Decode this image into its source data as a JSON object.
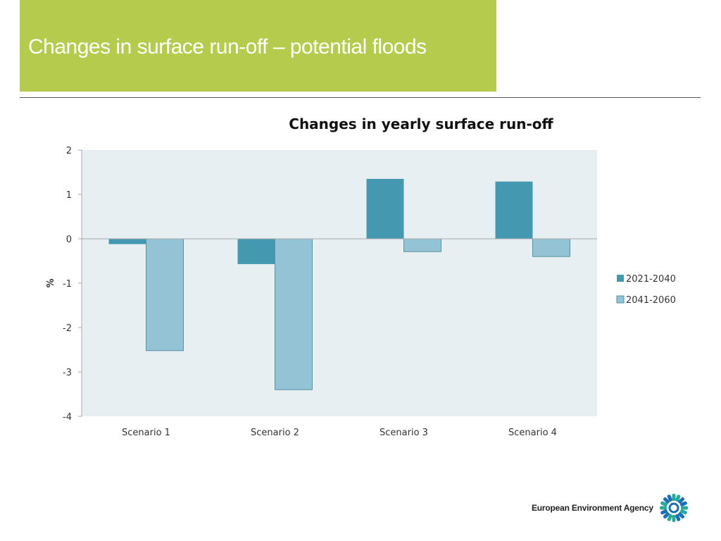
{
  "slide": {
    "title": "Changes in surface run-off – potential floods",
    "footer_logo": "European Environment Agency"
  },
  "colors": {
    "title_bg": "#b5cb4d",
    "series1": "#4498b0",
    "series2": "#93c3d5",
    "plot_bg": "#e8eff3"
  },
  "chart_data": {
    "type": "bar",
    "title": "Changes in yearly surface run-off",
    "xlabel": "",
    "ylabel": "%",
    "ylim": [
      -4,
      2
    ],
    "yticks": [
      2,
      1,
      0,
      -1,
      -2,
      -3,
      -4
    ],
    "categories": [
      "Scenario 1",
      "Scenario 2",
      "Scenario 3",
      "Scenario 4"
    ],
    "series": [
      {
        "name": "2021-2040",
        "values": [
          -0.12,
          -0.57,
          1.35,
          1.29
        ]
      },
      {
        "name": "2041-2060",
        "values": [
          -2.52,
          -3.4,
          -0.29,
          -0.4
        ]
      }
    ],
    "legend": "right",
    "grid": false
  }
}
